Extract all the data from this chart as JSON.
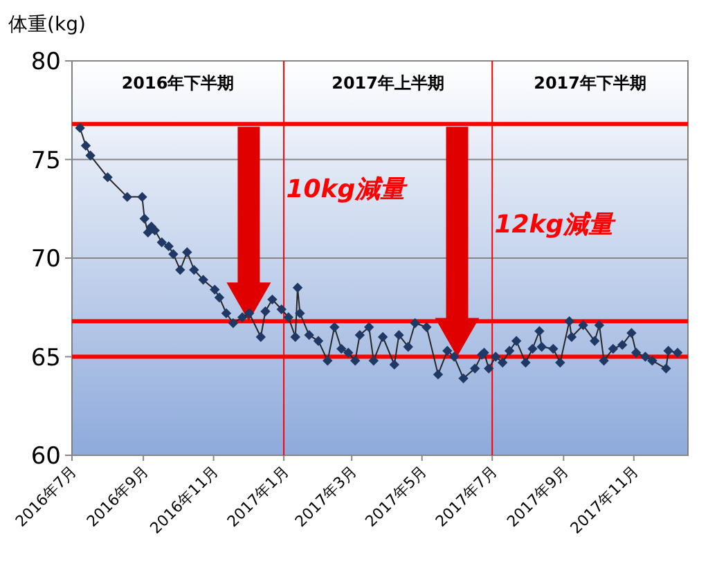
{
  "chart_data": {
    "type": "line",
    "ylabel": "体重(kg)",
    "x": [
      "2016-07-08",
      "2016-07-13",
      "2016-07-17",
      "2016-08-01",
      "2016-08-18",
      "2016-08-31",
      "2016-09-02",
      "2016-09-05",
      "2016-09-08",
      "2016-09-11",
      "2016-09-17",
      "2016-09-23",
      "2016-09-27",
      "2016-10-03",
      "2016-10-09",
      "2016-10-15",
      "2016-10-23",
      "2016-11-02",
      "2016-11-06",
      "2016-11-12",
      "2016-11-18",
      "2016-11-26",
      "2016-12-02",
      "2016-12-12",
      "2016-12-16",
      "2016-12-22",
      "2016-12-30",
      "2017-01-05",
      "2017-01-11",
      "2017-01-13",
      "2017-01-15",
      "2017-01-23",
      "2017-01-31",
      "2017-02-08",
      "2017-02-14",
      "2017-02-20",
      "2017-02-26",
      "2017-03-04",
      "2017-03-08",
      "2017-03-16",
      "2017-03-20",
      "2017-03-28",
      "2017-04-07",
      "2017-04-11",
      "2017-04-19",
      "2017-04-25",
      "2017-05-05",
      "2017-05-15",
      "2017-05-23",
      "2017-05-29",
      "2017-06-06",
      "2017-06-16",
      "2017-06-22",
      "2017-06-24",
      "2017-06-28",
      "2017-07-04",
      "2017-07-10",
      "2017-07-16",
      "2017-07-22",
      "2017-07-30",
      "2017-08-05",
      "2017-08-11",
      "2017-08-13",
      "2017-08-23",
      "2017-08-29",
      "2017-09-06",
      "2017-09-08",
      "2017-09-18",
      "2017-09-28",
      "2017-10-02",
      "2017-10-06",
      "2017-10-14",
      "2017-10-22",
      "2017-10-30",
      "2017-11-03",
      "2017-11-11",
      "2017-11-17",
      "2017-11-29",
      "2017-12-01",
      "2017-12-09"
    ],
    "series": [
      {
        "color": "#1f3864",
        "values": [
          76.6,
          75.7,
          75.2,
          74.1,
          73.1,
          73.1,
          72.0,
          71.3,
          71.6,
          71.4,
          70.8,
          70.6,
          70.2,
          69.4,
          70.3,
          69.4,
          68.9,
          68.4,
          68.0,
          67.2,
          66.7,
          67.0,
          67.2,
          66.0,
          67.3,
          67.9,
          67.4,
          67.0,
          66.0,
          68.5,
          67.2,
          66.1,
          65.8,
          64.8,
          66.5,
          65.4,
          65.2,
          64.8,
          66.1,
          66.5,
          64.8,
          66.0,
          64.6,
          66.1,
          65.5,
          66.7,
          66.5,
          64.1,
          65.3,
          65.0,
          63.9,
          64.4,
          65.1,
          65.2,
          64.4,
          65.0,
          64.7,
          65.3,
          65.8,
          64.7,
          65.4,
          66.3,
          65.5,
          65.4,
          64.7,
          66.8,
          66.0,
          66.6,
          65.8,
          66.6,
          64.8,
          65.4,
          65.6,
          66.2,
          65.2,
          65.0,
          64.8,
          64.4,
          65.3,
          65.2
        ]
      }
    ],
    "marker": "diamond",
    "xlim": [
      "2016-07-01",
      "2017-12-18"
    ],
    "xticks": [
      {
        "value": "2016-07-01",
        "label": "2016年7月"
      },
      {
        "value": "2016-09-01",
        "label": "2016年9月"
      },
      {
        "value": "2016-11-01",
        "label": "2016年11月"
      },
      {
        "value": "2017-01-01",
        "label": "2017年1月"
      },
      {
        "value": "2017-03-01",
        "label": "2017年3月"
      },
      {
        "value": "2017-05-01",
        "label": "2017年5月"
      },
      {
        "value": "2017-07-01",
        "label": "2017年7月"
      },
      {
        "value": "2017-09-01",
        "label": "2017年9月"
      },
      {
        "value": "2017-11-01",
        "label": "2017年11月"
      }
    ],
    "ylim": [
      60,
      80
    ],
    "yticks": [
      60,
      65,
      70,
      75,
      80
    ],
    "grid": "y",
    "ref_lines": [
      {
        "axis": "y",
        "value": 76.8,
        "color": "#ff0000"
      },
      {
        "axis": "y",
        "value": 66.8,
        "color": "#ff0000"
      },
      {
        "axis": "y",
        "value": 65.0,
        "color": "#ff0000"
      },
      {
        "axis": "x",
        "value": "2017-01-01",
        "color": "#ff0000"
      },
      {
        "axis": "x",
        "value": "2017-07-01",
        "color": "#ff0000"
      }
    ],
    "annotations": [
      "2016年下半期",
      "2017年上半期",
      "2017年下半期",
      {
        "text": "10kg減量",
        "x": "2017-01-03",
        "y": 73.1
      },
      {
        "text": "12kg減量",
        "x": "2017-07-03",
        "y": 71.3
      }
    ]
  }
}
